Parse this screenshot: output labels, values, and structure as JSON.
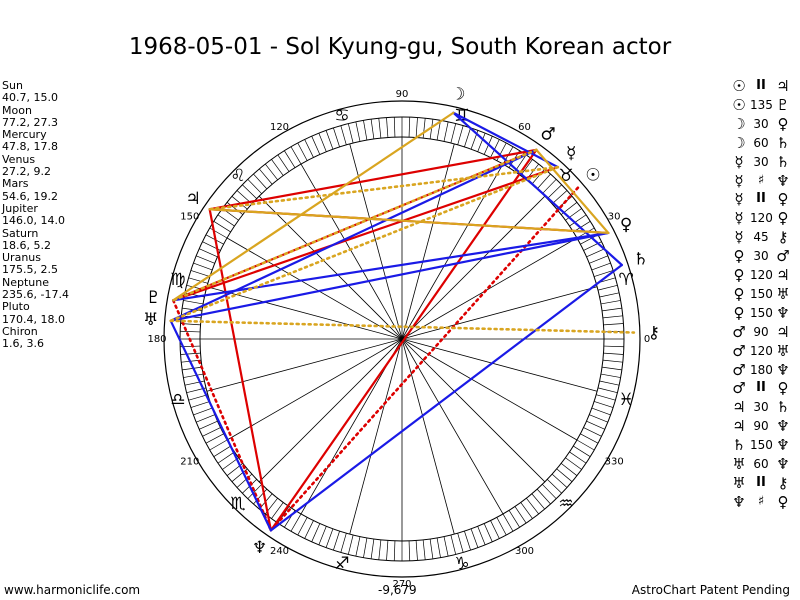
{
  "title": "1968-05-01 - Sol Kyung-gu, South Korean actor",
  "planets": [
    {
      "name": "Sun",
      "coords": "40.7, 15.0",
      "lon": 40.7,
      "glyph": "☉",
      "color": "#000000"
    },
    {
      "name": "Moon",
      "coords": "77.2, 27.3",
      "lon": 77.2,
      "glyph": "☽",
      "color": "#000000"
    },
    {
      "name": "Mercury",
      "coords": "47.8, 17.8",
      "lon": 47.8,
      "glyph": "☿",
      "color": "#000000"
    },
    {
      "name": "Venus",
      "coords": "27.2, 9.2",
      "lon": 27.2,
      "glyph": "♀",
      "color": "#000000"
    },
    {
      "name": "Mars",
      "coords": "54.6, 19.2",
      "lon": 54.6,
      "glyph": "♂",
      "color": "#000000"
    },
    {
      "name": "Jupiter",
      "coords": "146.0, 14.0",
      "lon": 146.0,
      "glyph": "♃",
      "color": "#000000"
    },
    {
      "name": "Saturn",
      "coords": "18.6, 5.2",
      "lon": 18.6,
      "glyph": "♄",
      "color": "#000000"
    },
    {
      "name": "Uranus",
      "coords": "175.5, 2.5",
      "lon": 175.5,
      "glyph": "♅",
      "color": "#000000"
    },
    {
      "name": "Neptune",
      "coords": "235.6, -17.4",
      "lon": 235.6,
      "glyph": "♆",
      "color": "#000000"
    },
    {
      "name": "Pluto",
      "coords": "170.4, 18.0",
      "lon": 170.4,
      "glyph": "♇",
      "color": "#000000"
    },
    {
      "name": "Chiron",
      "coords": "1.6, 3.6",
      "lon": 1.6,
      "glyph": "⚷",
      "color": "#000000"
    }
  ],
  "aspects_list": [
    {
      "p1": "☉",
      "aspect": "II",
      "p2": "♃"
    },
    {
      "p1": "☉",
      "aspect": "135",
      "p2": "♇"
    },
    {
      "p1": "☽",
      "aspect": "30",
      "p2": "♀"
    },
    {
      "p1": "☽",
      "aspect": "60",
      "p2": "♄"
    },
    {
      "p1": "☿",
      "aspect": "30",
      "p2": "♄"
    },
    {
      "p1": "☿",
      "aspect": "♯",
      "p2": "♆"
    },
    {
      "p1": "☿",
      "aspect": "II",
      "p2": "♀"
    },
    {
      "p1": "☿",
      "aspect": "120",
      "p2": "♀"
    },
    {
      "p1": "☿",
      "aspect": "45",
      "p2": "⚷"
    },
    {
      "p1": "♀",
      "aspect": "30",
      "p2": "♂"
    },
    {
      "p1": "♀",
      "aspect": "120",
      "p2": "♃"
    },
    {
      "p1": "♀",
      "aspect": "150",
      "p2": "♅"
    },
    {
      "p1": "♀",
      "aspect": "150",
      "p2": "♆"
    },
    {
      "p1": "♂",
      "aspect": "90",
      "p2": "♃"
    },
    {
      "p1": "♂",
      "aspect": "120",
      "p2": "♅"
    },
    {
      "p1": "♂",
      "aspect": "180",
      "p2": "♆"
    },
    {
      "p1": "♂",
      "aspect": "II",
      "p2": "♀"
    },
    {
      "p1": "♃",
      "aspect": "30",
      "p2": "♄"
    },
    {
      "p1": "♃",
      "aspect": "90",
      "p2": "♆"
    },
    {
      "p1": "♄",
      "aspect": "150",
      "p2": "♆"
    },
    {
      "p1": "♅",
      "aspect": "60",
      "p2": "♆"
    },
    {
      "p1": "♅",
      "aspect": "II",
      "p2": "⚷"
    },
    {
      "p1": "♆",
      "aspect": "♯",
      "p2": "♀"
    }
  ],
  "chart_data": {
    "type": "astrological-wheel",
    "degree_labels": [
      {
        "deg": 0,
        "text": "0"
      },
      {
        "deg": 30,
        "text": "30"
      },
      {
        "deg": 60,
        "text": "60"
      },
      {
        "deg": 90,
        "text": "90"
      },
      {
        "deg": 120,
        "text": "120"
      },
      {
        "deg": 150,
        "text": "150"
      },
      {
        "deg": 180,
        "text": "180"
      },
      {
        "deg": 210,
        "text": "210"
      },
      {
        "deg": 240,
        "text": "240"
      },
      {
        "deg": 270,
        "text": "270"
      },
      {
        "deg": 300,
        "text": "300"
      },
      {
        "deg": 330,
        "text": "330"
      }
    ],
    "signs": [
      {
        "name": "aries",
        "glyph": "♈"
      },
      {
        "name": "taurus",
        "glyph": "♉"
      },
      {
        "name": "gemini",
        "glyph": "♊"
      },
      {
        "name": "cancer",
        "glyph": "♋"
      },
      {
        "name": "leo",
        "glyph": "♌"
      },
      {
        "name": "virgo",
        "glyph": "♍"
      },
      {
        "name": "libra",
        "glyph": "♎"
      },
      {
        "name": "scorpio",
        "glyph": "♏"
      },
      {
        "name": "sagittarius",
        "glyph": "♐"
      },
      {
        "name": "capricorn",
        "glyph": "♑"
      },
      {
        "name": "aquarius",
        "glyph": "♒"
      },
      {
        "name": "pisces",
        "glyph": "♓"
      }
    ],
    "aspect_lines": [
      {
        "from": "Mars",
        "to": "Jupiter",
        "color": "#dd0000",
        "style": "solid"
      },
      {
        "from": "Mars",
        "to": "Neptune",
        "color": "#dd0000",
        "style": "solid"
      },
      {
        "from": "Mars",
        "to": "Pluto",
        "color": "#dd0000",
        "style": "solid"
      },
      {
        "from": "Mercury",
        "to": "Pluto",
        "color": "#dd0000",
        "style": "solid"
      },
      {
        "from": "Jupiter",
        "to": "Neptune",
        "color": "#dd0000",
        "style": "solid"
      },
      {
        "from": "Venus",
        "to": "Jupiter",
        "color": "#dd0000",
        "style": "solid"
      },
      {
        "from": "Sun",
        "to": "Neptune",
        "color": "#dd0000",
        "style": "dotted"
      },
      {
        "from": "Pluto",
        "to": "Neptune",
        "color": "#dd0000",
        "style": "dotted"
      },
      {
        "from": "Moon",
        "to": "Saturn",
        "color": "#1a1ae6",
        "style": "solid"
      },
      {
        "from": "Moon",
        "to": "Mercury",
        "color": "#1a1ae6",
        "style": "solid"
      },
      {
        "from": "Mars",
        "to": "Uranus",
        "color": "#1a1ae6",
        "style": "solid"
      },
      {
        "from": "Venus",
        "to": "Pluto",
        "color": "#1a1ae6",
        "style": "solid"
      },
      {
        "from": "Venus",
        "to": "Uranus",
        "color": "#1a1ae6",
        "style": "solid"
      },
      {
        "from": "Uranus",
        "to": "Neptune",
        "color": "#1a1ae6",
        "style": "solid"
      },
      {
        "from": "Saturn",
        "to": "Neptune",
        "color": "#1a1ae6",
        "style": "solid"
      },
      {
        "from": "Mars",
        "to": "Venus",
        "color": "#d9a520",
        "style": "solid"
      },
      {
        "from": "Moon",
        "to": "Pluto",
        "color": "#d9a520",
        "style": "solid"
      },
      {
        "from": "Jupiter",
        "to": "Venus",
        "color": "#d9a520",
        "style": "solid"
      },
      {
        "from": "Mercury",
        "to": "Uranus",
        "color": "#d9a520",
        "style": "dotted"
      },
      {
        "from": "Mars",
        "to": "Pluto",
        "color": "#d9a520",
        "style": "dotted"
      },
      {
        "from": "Mercury",
        "to": "Jupiter",
        "color": "#d9a520",
        "style": "dotted"
      },
      {
        "from": "Uranus",
        "to": "Chiron",
        "color": "#d9a520",
        "style": "dotted"
      }
    ]
  },
  "colors": {
    "red": "#dd0000",
    "blue": "#1a1ae6",
    "gold": "#d9a520"
  },
  "footer": {
    "left": "www.harmoniclife.com",
    "mid": "-9,679",
    "right": "AstroChart Patent Pending"
  }
}
